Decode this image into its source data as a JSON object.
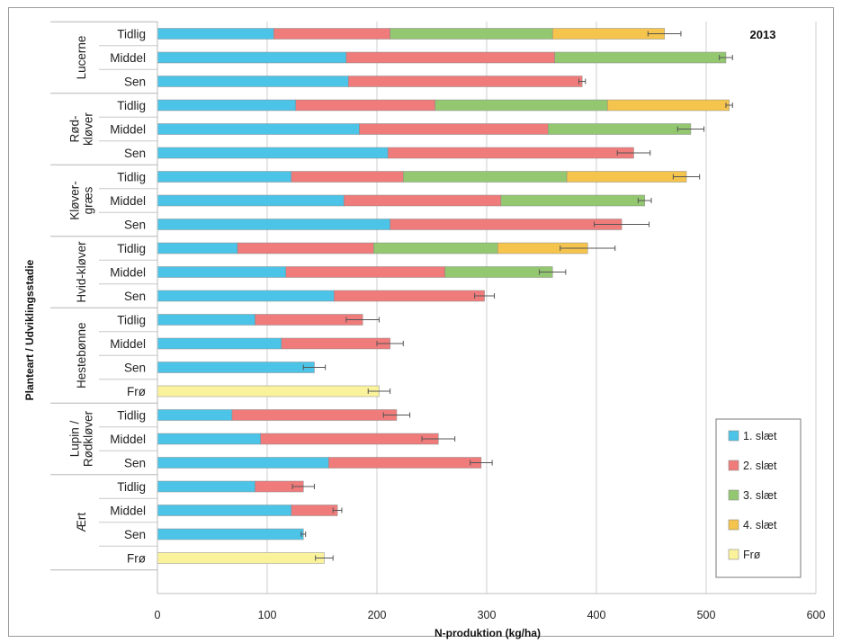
{
  "chart_data": {
    "type": "bar",
    "orientation": "horizontal",
    "stacked": true,
    "annotation": "2013",
    "xlabel": "N-produktion (kg/ha)",
    "ylabel": "Planteart / Udviklingsstadie",
    "xlim": [
      0,
      600
    ],
    "xticks": [
      "0",
      "100",
      "200",
      "300",
      "400",
      "500",
      "600"
    ],
    "grid": "vertical",
    "legend_position": "bottom-right",
    "series": [
      {
        "name": "1. slæt",
        "color": "#4cc4e8"
      },
      {
        "name": "2. slæt",
        "color": "#ef7b7b"
      },
      {
        "name": "3. slæt",
        "color": "#93c871"
      },
      {
        "name": "4. slæt",
        "color": "#f4c44c"
      },
      {
        "name": "Frø",
        "color": "#fbf29c"
      }
    ],
    "groups": [
      {
        "name": "Lucerne",
        "rows": [
          {
            "label": "Tidlig",
            "values": [
              106,
              106,
              148,
              102,
              0
            ],
            "total": 462,
            "error": 15
          },
          {
            "label": "Middel",
            "values": [
              172,
              190,
              156,
              0,
              0
            ],
            "total": 518,
            "error": 6
          },
          {
            "label": "Sen",
            "values": [
              174,
              213,
              0,
              0,
              0
            ],
            "total": 387,
            "error": 3
          }
        ]
      },
      {
        "name": "Rød-kløver",
        "rows": [
          {
            "label": "Tidlig",
            "values": [
              126,
              127,
              157,
              111,
              0
            ],
            "total": 521,
            "error": 3
          },
          {
            "label": "Middel",
            "values": [
              184,
              172,
              130,
              0,
              0
            ],
            "total": 486,
            "error": 12
          },
          {
            "label": "Sen",
            "values": [
              210,
              224,
              0,
              0,
              0
            ],
            "total": 434,
            "error": 15
          }
        ]
      },
      {
        "name": "Kløver-græs",
        "rows": [
          {
            "label": "Tidlig",
            "values": [
              122,
              102,
              149,
              109,
              0
            ],
            "total": 482,
            "error": 12
          },
          {
            "label": "Middel",
            "values": [
              170,
              143,
              131,
              0,
              0
            ],
            "total": 444,
            "error": 6
          },
          {
            "label": "Sen",
            "values": [
              212,
              211,
              0,
              0,
              0
            ],
            "total": 423,
            "error": 25
          }
        ]
      },
      {
        "name": "Hvid-kløver",
        "rows": [
          {
            "label": "Tidlig",
            "values": [
              73,
              124,
              113,
              82,
              0
            ],
            "total": 392,
            "error": 25
          },
          {
            "label": "Middel",
            "values": [
              117,
              145,
              98,
              0,
              0
            ],
            "total": 360,
            "error": 12
          },
          {
            "label": "Sen",
            "values": [
              161,
              137,
              0,
              0,
              0
            ],
            "total": 298,
            "error": 9
          }
        ]
      },
      {
        "name": "Hestebønne",
        "rows": [
          {
            "label": "Tidlig",
            "values": [
              89,
              98,
              0,
              0,
              0
            ],
            "total": 187,
            "error": 15
          },
          {
            "label": "Middel",
            "values": [
              113,
              99,
              0,
              0,
              0
            ],
            "total": 212,
            "error": 12
          },
          {
            "label": "Sen",
            "values": [
              143,
              0,
              0,
              0,
              0
            ],
            "total": 143,
            "error": 10
          },
          {
            "label": "Frø",
            "values": [
              0,
              0,
              0,
              0,
              202
            ],
            "total": 202,
            "error": 10
          }
        ]
      },
      {
        "name": "Lupin / Rødkløver",
        "rows": [
          {
            "label": "Tidlig",
            "values": [
              68,
              150,
              0,
              0,
              0
            ],
            "total": 218,
            "error": 12
          },
          {
            "label": "Middel",
            "values": [
              94,
              162,
              0,
              0,
              0
            ],
            "total": 256,
            "error": 15
          },
          {
            "label": "Sen",
            "values": [
              156,
              139,
              0,
              0,
              0
            ],
            "total": 295,
            "error": 10
          }
        ]
      },
      {
        "name": "Ært",
        "rows": [
          {
            "label": "Tidlig",
            "values": [
              89,
              44,
              0,
              0,
              0
            ],
            "total": 133,
            "error": 10
          },
          {
            "label": "Middel",
            "values": [
              122,
              42,
              0,
              0,
              0
            ],
            "total": 164,
            "error": 4
          },
          {
            "label": "Sen",
            "values": [
              133,
              0,
              0,
              0,
              0
            ],
            "total": 133,
            "error": 2
          },
          {
            "label": "Frø",
            "values": [
              0,
              0,
              0,
              0,
              152
            ],
            "total": 152,
            "error": 8
          }
        ]
      }
    ]
  }
}
